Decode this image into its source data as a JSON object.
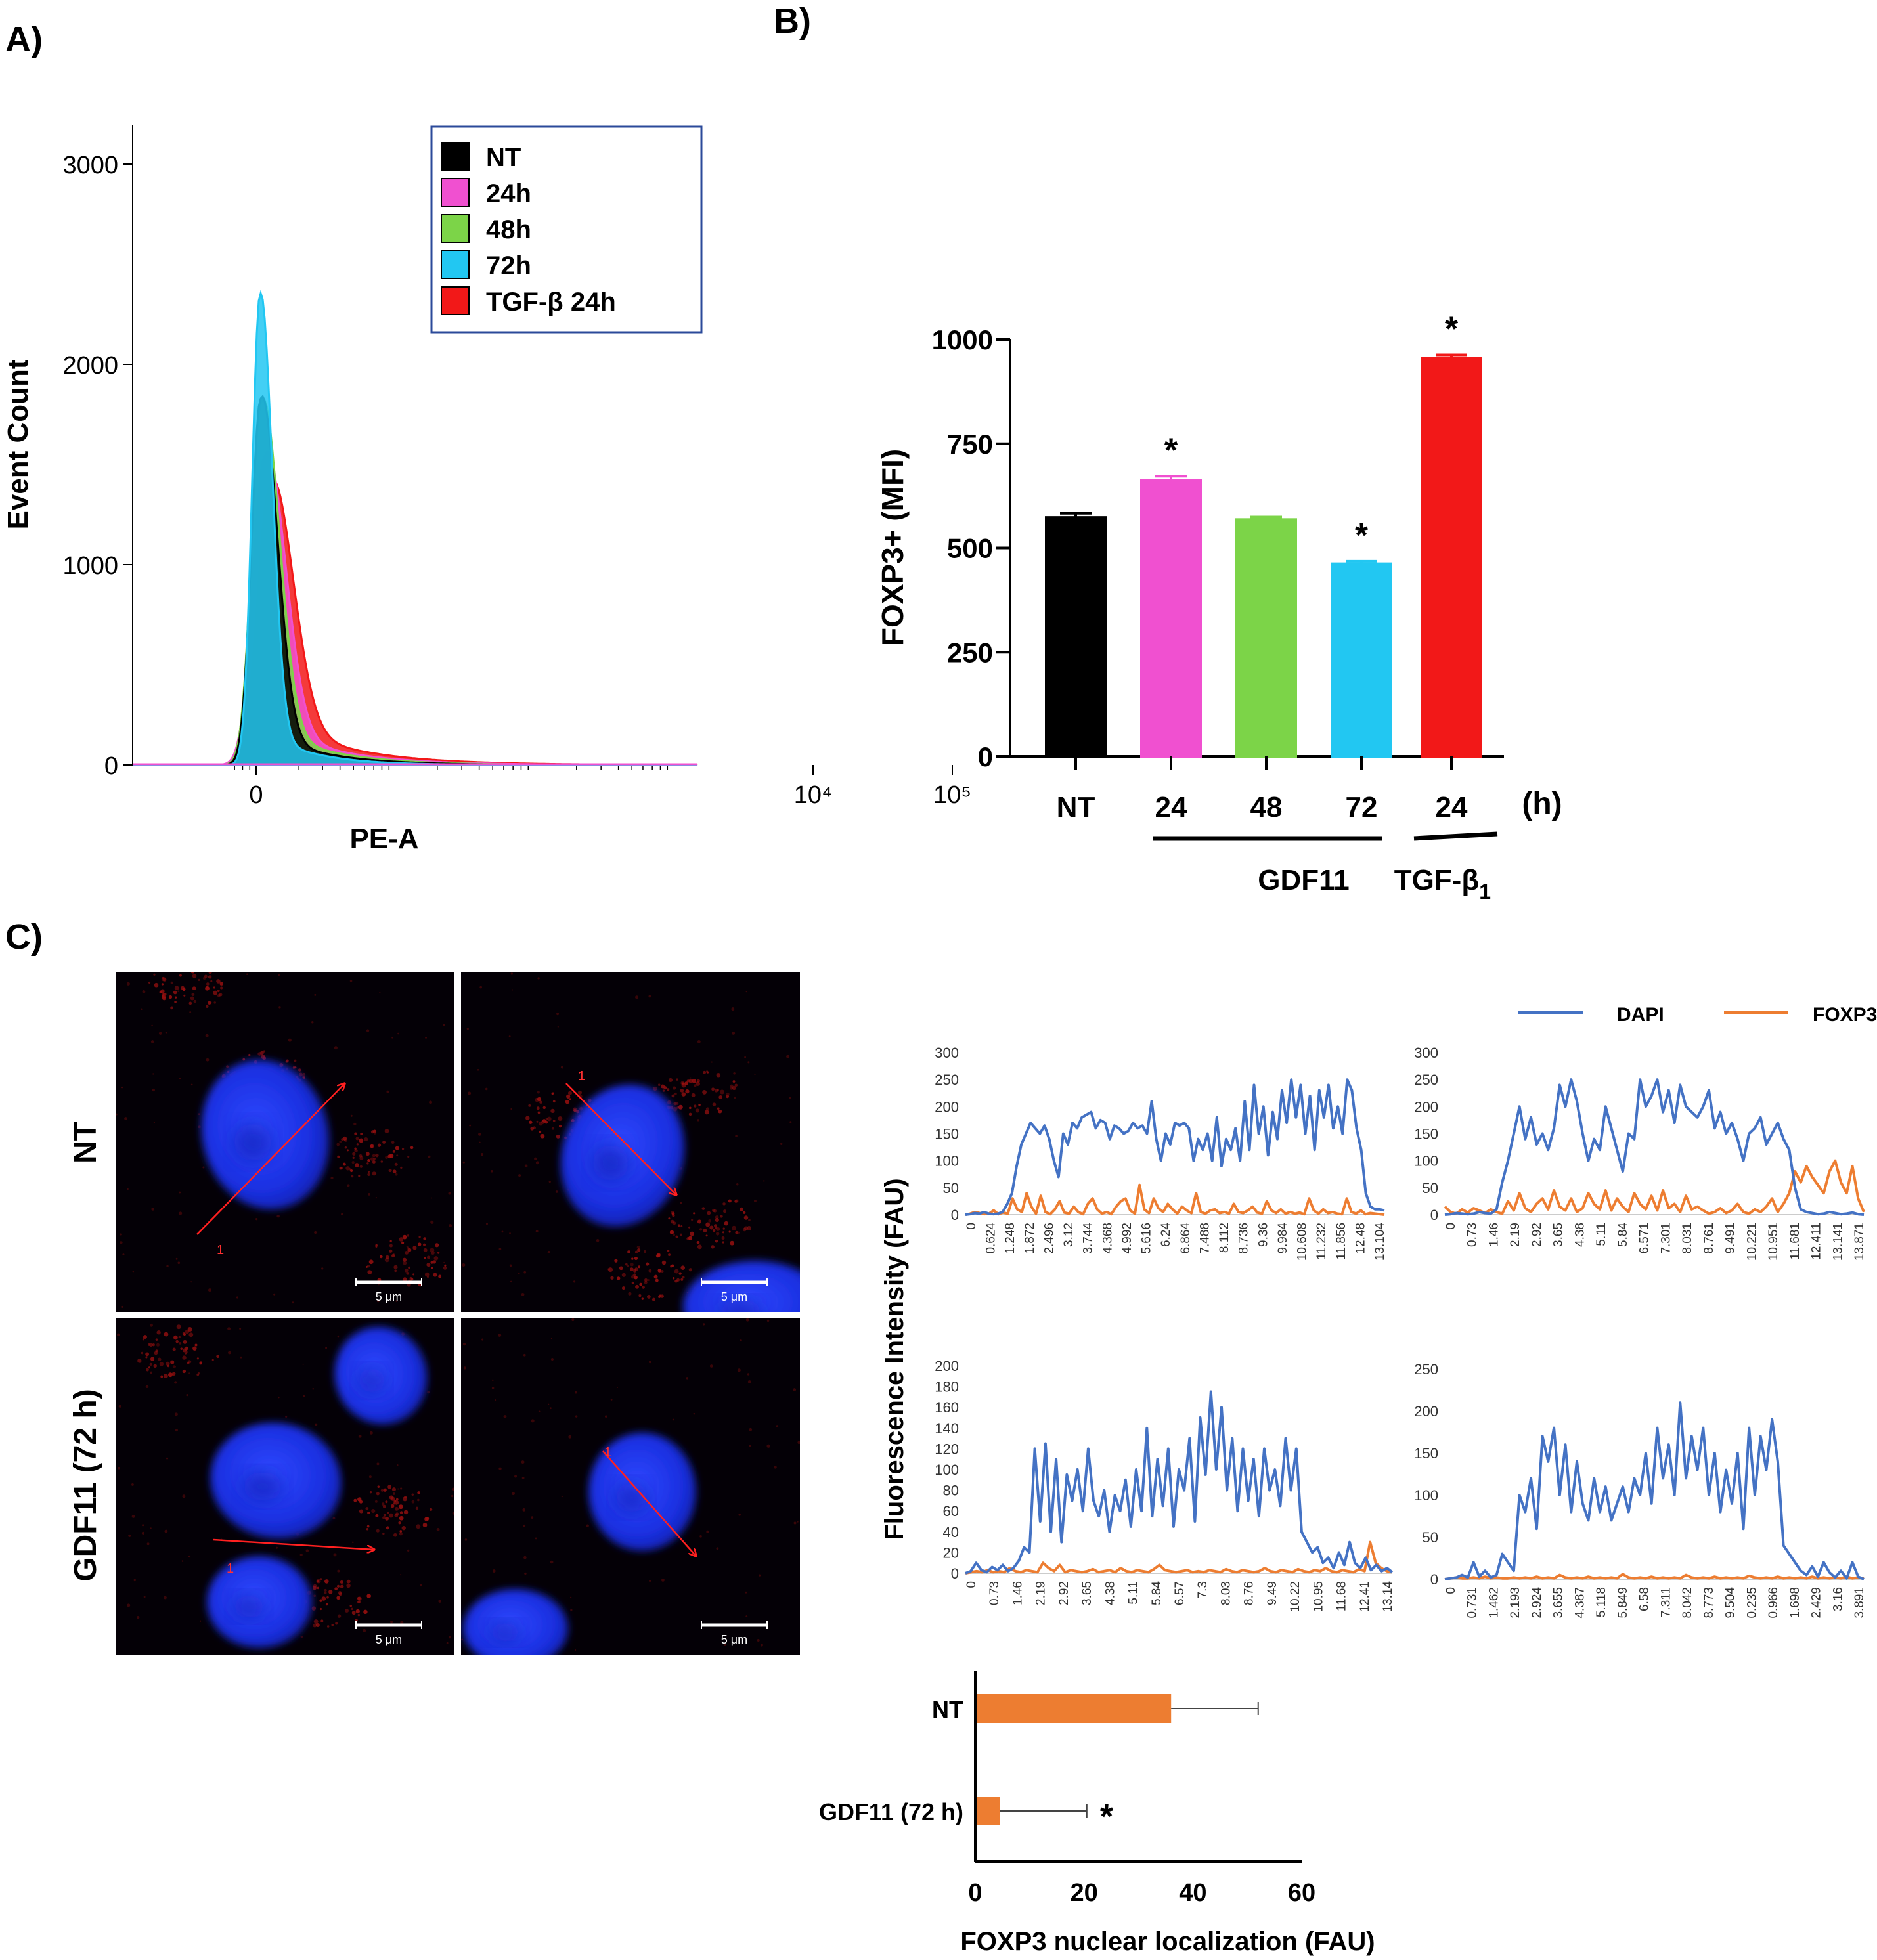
{
  "panels": {
    "a": {
      "letter": "A)"
    },
    "b": {
      "letter": "B)"
    },
    "c": {
      "letter": "C)"
    }
  },
  "colors": {
    "NT": "#000000",
    "24h": "#f050d0",
    "48h": "#7cd448",
    "72h": "#22c7f2",
    "TGF": "#f21818",
    "dapi": "#4472c4",
    "foxp3": "#ed7d31",
    "nucleus": "#1a2fe0"
  },
  "chart_data": [
    {
      "id": "histogram",
      "type": "area",
      "xlabel": "PE-A",
      "ylabel": "Event Count",
      "ylim": [
        0,
        3000
      ],
      "yticks": [
        0,
        1000,
        2000,
        3000
      ],
      "xticks": [
        {
          "label": "0",
          "x": 0
        },
        {
          "label": "10⁴",
          "x": 4
        },
        {
          "label": "10⁵",
          "x": 5
        }
      ],
      "legend": {
        "position": "top-right",
        "entries": [
          "NT",
          "24h",
          "48h",
          "72h",
          "TGF-β 24h"
        ]
      },
      "series": [
        {
          "name": "NT",
          "color_key": "NT",
          "peak": 1830
        },
        {
          "name": "24h",
          "color_key": "24h",
          "peak": 1540
        },
        {
          "name": "48h",
          "color_key": "48h",
          "peak": 1810
        },
        {
          "name": "72h",
          "color_key": "72h",
          "peak": 2350
        },
        {
          "name": "TGF-β 24h",
          "color_key": "TGF",
          "peak": 1380
        }
      ]
    },
    {
      "id": "mfi",
      "type": "bar",
      "ylabel": "FOXP3+ (MFI)",
      "ylim": [
        0,
        1000
      ],
      "yticks": [
        0,
        250,
        500,
        750,
        1000
      ],
      "categories": [
        "NT",
        "24",
        "48",
        "72",
        "24"
      ],
      "values": [
        573,
        662,
        568,
        462,
        955
      ],
      "errors": [
        10,
        10,
        6,
        6,
        8
      ],
      "significant": [
        false,
        true,
        false,
        true,
        true
      ],
      "color_keys": [
        "NT",
        "24h",
        "48h",
        "72h",
        "TGF"
      ],
      "unit_label": "(h)",
      "groups": [
        {
          "label": "GDF11",
          "from": 1,
          "to": 3
        },
        {
          "label": "TGF-β",
          "sub": "1",
          "from": 4,
          "to": 4
        }
      ],
      "star": "*"
    },
    {
      "id": "profiles",
      "type": "line",
      "ylabel": "Fluorescence Intensity (FAU)",
      "legend": {
        "position": "top-right",
        "entries": [
          "DAPI",
          "FOXP3"
        ]
      },
      "plots": [
        {
          "yticks": [
            0,
            50,
            100,
            150,
            200,
            250,
            300
          ],
          "ymax": 300,
          "xticks": [
            "0",
            "0.624",
            "1.248",
            "1.872",
            "2.496",
            "3.12",
            "3.744",
            "4.368",
            "4.992",
            "5.616",
            "6.24",
            "6.864",
            "7.488",
            "8.112",
            "8.736",
            "9.36",
            "9.984",
            "10.608",
            "11.232",
            "11.856",
            "12.48",
            "13.104"
          ],
          "dapi": [
            0,
            1,
            3,
            2,
            5,
            2,
            1,
            2,
            5,
            20,
            40,
            90,
            130,
            150,
            170,
            160,
            150,
            165,
            140,
            100,
            70,
            150,
            130,
            170,
            160,
            180,
            185,
            190,
            160,
            175,
            170,
            140,
            165,
            160,
            150,
            155,
            170,
            160,
            165,
            150,
            210,
            140,
            100,
            150,
            130,
            170,
            165,
            170,
            160,
            100,
            140,
            120,
            150,
            100,
            180,
            90,
            140,
            120,
            160,
            100,
            210,
            120,
            240,
            150,
            200,
            110,
            190,
            140,
            230,
            170,
            250,
            180,
            240,
            150,
            220,
            120,
            230,
            180,
            240,
            160,
            200,
            150,
            250,
            230,
            160,
            120,
            40,
            15,
            10,
            10,
            8
          ],
          "foxp3": [
            0,
            2,
            5,
            3,
            1,
            2,
            8,
            1,
            4,
            2,
            30,
            10,
            5,
            40,
            15,
            2,
            35,
            5,
            1,
            10,
            25,
            4,
            2,
            15,
            5,
            1,
            20,
            30,
            10,
            2,
            5,
            1,
            15,
            25,
            30,
            8,
            2,
            55,
            10,
            3,
            30,
            12,
            5,
            20,
            10,
            2,
            15,
            8,
            3,
            40,
            5,
            2,
            8,
            10,
            3,
            5,
            2,
            20,
            5,
            3,
            8,
            15,
            4,
            2,
            25,
            8,
            3,
            10,
            2,
            5,
            2,
            4,
            1,
            30,
            8,
            2,
            10,
            3,
            5,
            2,
            1,
            30,
            5,
            2,
            8,
            1,
            3,
            2,
            1,
            0
          ]
        },
        {
          "yticks": [
            0,
            50,
            100,
            150,
            200,
            250,
            300
          ],
          "ymax": 300,
          "xticks": [
            "0",
            "0.73",
            "1.46",
            "2.19",
            "2.92",
            "3.65",
            "4.38",
            "5.11",
            "5.84",
            "6.571",
            "7.301",
            "8.031",
            "8.761",
            "9.491",
            "10.221",
            "10.951",
            "11.681",
            "12.411",
            "13.141",
            "13.871"
          ],
          "dapi": [
            0,
            1,
            3,
            2,
            1,
            2,
            5,
            3,
            2,
            10,
            60,
            100,
            150,
            200,
            140,
            180,
            130,
            150,
            120,
            160,
            240,
            200,
            250,
            210,
            150,
            100,
            140,
            120,
            200,
            160,
            120,
            80,
            150,
            140,
            250,
            200,
            220,
            250,
            190,
            230,
            170,
            240,
            200,
            190,
            180,
            200,
            230,
            160,
            190,
            150,
            170,
            140,
            100,
            150,
            160,
            180,
            130,
            150,
            170,
            140,
            120,
            50,
            10,
            5,
            3,
            1,
            2,
            5,
            3,
            1,
            2,
            4,
            1,
            0
          ],
          "foxp3": [
            15,
            5,
            2,
            10,
            4,
            12,
            8,
            3,
            10,
            5,
            2,
            25,
            8,
            40,
            12,
            5,
            20,
            30,
            10,
            45,
            15,
            8,
            30,
            5,
            12,
            40,
            20,
            10,
            45,
            8,
            30,
            15,
            5,
            40,
            20,
            10,
            35,
            8,
            45,
            12,
            20,
            5,
            35,
            10,
            15,
            8,
            2,
            5,
            12,
            3,
            8,
            20,
            5,
            2,
            10,
            5,
            15,
            30,
            5,
            20,
            40,
            80,
            60,
            90,
            70,
            55,
            40,
            80,
            100,
            60,
            40,
            90,
            30,
            5
          ]
        },
        {
          "yticks": [
            0,
            20,
            40,
            60,
            80,
            100,
            120,
            140,
            160,
            180,
            200
          ],
          "ymax": 200,
          "xticks": [
            "0",
            "0.73",
            "1.46",
            "2.19",
            "2.92",
            "3.65",
            "4.38",
            "5.11",
            "5.84",
            "6.57",
            "7.3",
            "8.03",
            "8.76",
            "9.49",
            "10.22",
            "10.95",
            "11.68",
            "12.41",
            "13.14"
          ],
          "dapi": [
            0,
            2,
            10,
            3,
            1,
            6,
            3,
            8,
            2,
            5,
            12,
            25,
            20,
            120,
            50,
            125,
            40,
            110,
            30,
            95,
            70,
            100,
            60,
            120,
            70,
            55,
            80,
            40,
            75,
            60,
            90,
            45,
            100,
            60,
            140,
            55,
            110,
            65,
            120,
            45,
            100,
            80,
            130,
            50,
            150,
            95,
            175,
            100,
            160,
            80,
            130,
            60,
            120,
            70,
            110,
            55,
            120,
            80,
            100,
            65,
            130,
            80,
            120,
            40,
            30,
            20,
            25,
            10,
            15,
            5,
            20,
            8,
            30,
            10,
            5,
            15,
            3,
            8,
            2,
            5,
            1
          ],
          "foxp3": [
            0,
            1,
            2,
            1,
            3,
            1,
            2,
            1,
            5,
            2,
            1,
            3,
            2,
            1,
            10,
            5,
            2,
            8,
            1,
            3,
            2,
            1,
            2,
            4,
            1,
            2,
            3,
            1,
            5,
            2,
            1,
            3,
            2,
            1,
            4,
            8,
            3,
            2,
            1,
            2,
            3,
            1,
            2,
            1,
            3,
            2,
            1,
            4,
            2,
            1,
            3,
            2,
            1,
            2,
            5,
            2,
            1,
            3,
            2,
            1,
            4,
            2,
            1,
            3,
            2,
            5,
            2,
            1,
            3,
            2,
            1,
            4,
            2,
            30,
            10,
            5,
            2,
            1
          ]
        },
        {
          "yticks": [
            0,
            50,
            100,
            150,
            200,
            250
          ],
          "ymax": 250,
          "xticks": [
            "0",
            "0.731",
            "1.462",
            "2.193",
            "2.924",
            "3.655",
            "4.387",
            "5.118",
            "5.849",
            "6.58",
            "7.311",
            "8.042",
            "8.773",
            "9.504",
            "0.235",
            "0.966",
            "1.698",
            "2.429",
            "3.16",
            "3.891"
          ],
          "dapi": [
            0,
            1,
            2,
            5,
            2,
            20,
            3,
            10,
            2,
            5,
            30,
            20,
            10,
            100,
            80,
            120,
            60,
            170,
            140,
            180,
            100,
            160,
            80,
            140,
            90,
            70,
            120,
            80,
            110,
            70,
            90,
            110,
            80,
            120,
            100,
            150,
            90,
            180,
            120,
            160,
            100,
            210,
            120,
            170,
            130,
            180,
            100,
            150,
            80,
            130,
            90,
            150,
            60,
            180,
            100,
            170,
            130,
            190,
            140,
            40,
            30,
            20,
            10,
            5,
            15,
            3,
            20,
            8,
            2,
            10,
            1,
            20,
            3,
            0
          ],
          "foxp3": [
            0,
            1,
            2,
            1,
            1,
            2,
            1,
            3,
            1,
            2,
            1,
            1,
            2,
            1,
            2,
            1,
            3,
            1,
            2,
            1,
            5,
            2,
            1,
            2,
            1,
            3,
            1,
            2,
            1,
            2,
            1,
            6,
            2,
            1,
            2,
            1,
            3,
            1,
            2,
            1,
            2,
            1,
            5,
            2,
            1,
            2,
            1,
            3,
            1,
            2,
            1,
            2,
            1,
            4,
            2,
            1,
            2,
            1,
            3,
            1,
            2,
            1,
            2,
            1,
            3,
            1,
            2,
            1,
            2,
            1,
            3,
            1,
            2,
            1
          ]
        }
      ]
    },
    {
      "id": "nuclear",
      "type": "bar",
      "orientation": "horizontal",
      "xlabel": "FOXP3 nuclear localization (FAU)",
      "xlim": [
        0,
        60
      ],
      "xticks": [
        0,
        20,
        40,
        60
      ],
      "categories": [
        "NT",
        "GDF11 (72 h)"
      ],
      "values": [
        36,
        4.5
      ],
      "errors": [
        16,
        16
      ],
      "significant": [
        false,
        true
      ],
      "star": "*"
    }
  ],
  "micrographs": {
    "row_labels": [
      "NT",
      "GDF11 (72 h)"
    ],
    "scale_bar": "5 μm",
    "line_label": "1"
  }
}
